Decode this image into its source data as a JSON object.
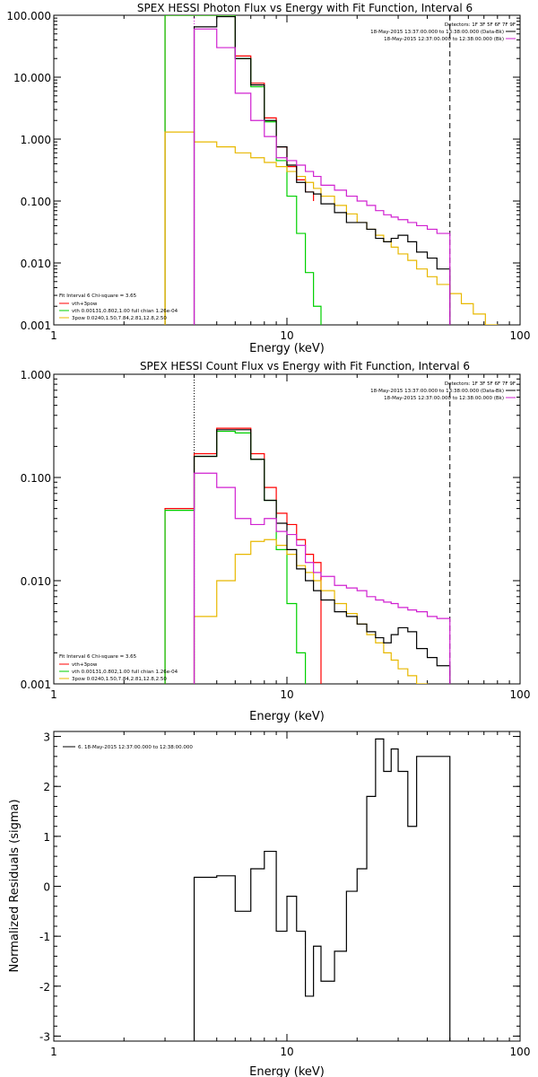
{
  "chart_data": [
    {
      "type": "line",
      "title": "SPEX HESSI Photon Flux vs Energy with Fit Function, Interval 6",
      "xlabel": "Energy (keV)",
      "ylabel": "",
      "x_scale": "log",
      "y_scale": "log",
      "xlim": [
        1,
        100
      ],
      "ylim": [
        0.001,
        100
      ],
      "x_tick_labels": [
        "1",
        "10",
        "100"
      ],
      "y_tick_labels": [
        "0.001",
        "0.010",
        "0.100",
        "1.000",
        "10.000",
        "100.000"
      ],
      "legend_top": [
        "Detectors: 1F 3F 5F 6F 7F 9F",
        "18-May-2015 13:37:00.000 to 13:38:00.000 (Data-Bk)",
        "18-May-2015 12:37:00.000 to 12:38:00.000 (Bk)"
      ],
      "legend_bottom": [
        "Fit Interval 6   Chi-square = 3.65",
        "vth+3pow",
        "vth 0.00131,0.802,1.00  full chian 1.26e-04",
        "3pow 0.0240,1.50,7.84,2.81,12.8,2.50"
      ],
      "series": [
        {
          "name": "vth+3pow",
          "color": "#ff0000",
          "edges": [
            3.0,
            4.0,
            5.0,
            6.0,
            7.0,
            8.0,
            9.0,
            10.0,
            11.0,
            12.0,
            13.0
          ],
          "values": [
            100,
            100,
            100,
            22,
            8,
            2.2,
            0.75,
            0.36,
            0.22,
            0.14,
            0.1
          ]
        },
        {
          "name": "vth",
          "color": "#00d000",
          "edges": [
            3.0,
            4.0,
            5.0,
            6.0,
            7.0,
            8.0,
            9.0,
            10.0,
            11.0,
            12.0,
            13.0,
            14.0
          ],
          "values": [
            100,
            100,
            100,
            20,
            7,
            1.9,
            0.45,
            0.12,
            0.03,
            0.007,
            0.002
          ]
        },
        {
          "name": "3pow",
          "color": "#e8b800",
          "edges": [
            3.0,
            4.0,
            5.0,
            6.0,
            7.0,
            8.0,
            9.0,
            10.0,
            11.0,
            12.0,
            13.0,
            14.0,
            16.0,
            18.0,
            20.0,
            22.0,
            24.0,
            26.0,
            28.0,
            30.0,
            33.0,
            36.0,
            40.0,
            44.0,
            50.0,
            56.0,
            63.0,
            71.0,
            80.0
          ],
          "values": [
            1.3,
            0.9,
            0.75,
            0.6,
            0.5,
            0.42,
            0.36,
            0.3,
            0.25,
            0.2,
            0.16,
            0.12,
            0.085,
            0.062,
            0.045,
            0.035,
            0.028,
            0.022,
            0.018,
            0.014,
            0.011,
            0.008,
            0.006,
            0.0045,
            0.0032,
            0.0022,
            0.0015,
            0.001
          ]
        },
        {
          "name": "18-May-2015 13:37:00.000 to 13:38:00.000 (Data-Bk)",
          "color": "#000000",
          "edges": [
            4.0,
            5.0,
            6.0,
            7.0,
            8.0,
            9.0,
            10.0,
            11.0,
            12.0,
            13.0,
            14.0,
            16.0,
            18.0,
            20.0,
            22.0,
            24.0,
            26.0,
            28.0,
            30.0,
            33.0,
            36.0,
            40.0,
            44.0,
            50.0
          ],
          "values": [
            65,
            95,
            20,
            7.5,
            2.0,
            0.75,
            0.38,
            0.2,
            0.14,
            0.13,
            0.09,
            0.065,
            0.045,
            0.045,
            0.035,
            0.025,
            0.022,
            0.025,
            0.028,
            0.022,
            0.015,
            0.012,
            0.008
          ]
        },
        {
          "name": "18-May-2015 12:37:00.000 to 12:38:00.000 (Bk)",
          "color": "#d020d0",
          "edges": [
            4.0,
            5.0,
            6.0,
            7.0,
            8.0,
            9.0,
            10.0,
            11.0,
            12.0,
            13.0,
            14.0,
            16.0,
            18.0,
            20.0,
            22.0,
            24.0,
            26.0,
            28.0,
            30.0,
            33.0,
            36.0,
            40.0,
            44.0,
            50.0
          ],
          "values": [
            60,
            30,
            5.5,
            2.0,
            1.1,
            0.5,
            0.45,
            0.38,
            0.3,
            0.25,
            0.18,
            0.15,
            0.12,
            0.1,
            0.085,
            0.07,
            0.06,
            0.055,
            0.05,
            0.045,
            0.04,
            0.035,
            0.03
          ]
        }
      ],
      "vlines": [
        {
          "x": 4.0,
          "style": "dotted",
          "color": "#d020d0"
        },
        {
          "x": 50.0,
          "style": "dashed",
          "color": "#000000"
        }
      ]
    },
    {
      "type": "line",
      "title": "SPEX HESSI Count Flux vs Energy with Fit Function, Interval 6",
      "xlabel": "Energy (keV)",
      "ylabel": "",
      "x_scale": "log",
      "y_scale": "log",
      "xlim": [
        1,
        100
      ],
      "ylim": [
        0.001,
        1
      ],
      "x_tick_labels": [
        "1",
        "10",
        "100"
      ],
      "y_tick_labels": [
        "0.001",
        "0.010",
        "0.100",
        "1.000"
      ],
      "legend_top": [
        "Detectors: 1F 3F 5F 6F 7F 9F",
        "18-May-2015 13:37:00.000 to 13:38:00.000 (Data-Bk)",
        "18-May-2015 12:37:00.000 to 12:38:00.000 (Bk)"
      ],
      "legend_bottom": [
        "Fit Interval 6   Chi-square = 3.65",
        "vth+3pow",
        "vth 0.00131,0.802,1.00  full chian 1.26e-04",
        "3pow 0.0240,1.50,7.84,2.81,12.8,2.50"
      ],
      "series": [
        {
          "name": "vth+3pow",
          "color": "#ff0000",
          "edges": [
            3.0,
            4.0,
            5.0,
            6.0,
            7.0,
            8.0,
            9.0,
            10.0,
            11.0,
            12.0,
            13.0,
            14.0
          ],
          "values": [
            0.05,
            0.17,
            0.3,
            0.3,
            0.17,
            0.08,
            0.045,
            0.035,
            0.025,
            0.018,
            0.015
          ]
        },
        {
          "name": "vth",
          "color": "#00d000",
          "edges": [
            3.0,
            4.0,
            5.0,
            6.0,
            7.0,
            8.0,
            9.0,
            10.0,
            11.0,
            12.0
          ],
          "values": [
            0.048,
            0.16,
            0.28,
            0.27,
            0.15,
            0.06,
            0.02,
            0.006,
            0.002
          ]
        },
        {
          "name": "3pow",
          "color": "#e8b800",
          "edges": [
            4.0,
            5.0,
            6.0,
            7.0,
            8.0,
            9.0,
            10.0,
            11.0,
            12.0,
            13.0,
            14.0,
            16.0,
            18.0,
            20.0,
            22.0,
            24.0,
            26.0,
            28.0,
            30.0,
            33.0,
            36.0,
            40.0
          ],
          "values": [
            0.0045,
            0.01,
            0.018,
            0.024,
            0.025,
            0.022,
            0.018,
            0.014,
            0.012,
            0.01,
            0.008,
            0.006,
            0.0048,
            0.0038,
            0.003,
            0.0025,
            0.002,
            0.0017,
            0.0014,
            0.0012,
            0.001
          ]
        },
        {
          "name": "18-May-2015 13:37:00.000 to 13:38:00.000 (Data-Bk)",
          "color": "#000000",
          "edges": [
            4.0,
            5.0,
            6.0,
            7.0,
            8.0,
            9.0,
            10.0,
            11.0,
            12.0,
            13.0,
            14.0,
            16.0,
            18.0,
            20.0,
            22.0,
            24.0,
            26.0,
            28.0,
            30.0,
            33.0,
            36.0,
            40.0,
            44.0,
            50.0
          ],
          "values": [
            0.16,
            0.29,
            0.29,
            0.15,
            0.06,
            0.036,
            0.02,
            0.013,
            0.01,
            0.008,
            0.0065,
            0.005,
            0.0045,
            0.0038,
            0.0032,
            0.0028,
            0.0025,
            0.003,
            0.0035,
            0.0032,
            0.0022,
            0.0018,
            0.0015
          ]
        },
        {
          "name": "18-May-2015 12:37:00.000 to 12:38:00.000 (Bk)",
          "color": "#d020d0",
          "edges": [
            4.0,
            5.0,
            6.0,
            7.0,
            8.0,
            9.0,
            10.0,
            11.0,
            12.0,
            13.0,
            14.0,
            16.0,
            18.0,
            20.0,
            22.0,
            24.0,
            26.0,
            28.0,
            30.0,
            33.0,
            36.0,
            40.0,
            44.0,
            50.0
          ],
          "values": [
            0.11,
            0.08,
            0.04,
            0.035,
            0.04,
            0.03,
            0.028,
            0.022,
            0.015,
            0.012,
            0.011,
            0.009,
            0.0085,
            0.008,
            0.007,
            0.0065,
            0.0062,
            0.006,
            0.0055,
            0.0052,
            0.005,
            0.0045,
            0.0043
          ]
        }
      ],
      "vlines": [
        {
          "x": 4.0,
          "style": "dotted",
          "color": "#000000"
        },
        {
          "x": 50.0,
          "style": "dashed",
          "color": "#000000"
        }
      ]
    },
    {
      "type": "line",
      "title": "",
      "xlabel": "Energy (keV)",
      "ylabel": "Normalized Residuals (sigma)",
      "x_scale": "log",
      "y_scale": "linear",
      "xlim": [
        1,
        100
      ],
      "ylim": [
        -3.1,
        3.1
      ],
      "x_tick_labels": [
        "1",
        "10",
        "100"
      ],
      "y_tick_labels": [
        "-3",
        "-2",
        "-1",
        "0",
        "1",
        "2",
        "3"
      ],
      "legend": "6. 18-May-2015 12:37:00.000 to 12:38:00.000",
      "series": [
        {
          "name": "6. 18-May-2015 12:37:00.000 to 12:38:00.000",
          "color": "#000000",
          "edges": [
            4.0,
            5.0,
            6.0,
            7.0,
            8.0,
            9.0,
            10.0,
            11.0,
            12.0,
            13.0,
            14.0,
            16.0,
            18.0,
            20.0,
            22.0,
            24.0,
            26.0,
            28.0,
            30.0,
            33.0,
            36.0,
            40.0,
            44.0,
            50.0
          ],
          "values": [
            0.18,
            0.21,
            -0.5,
            0.35,
            0.7,
            -0.9,
            -0.2,
            -0.9,
            -2.2,
            -1.2,
            -1.9,
            -1.3,
            -0.1,
            0.35,
            1.8,
            2.95,
            2.3,
            2.75,
            2.3,
            1.2,
            2.6,
            2.6,
            2.6
          ]
        }
      ],
      "vlines": []
    }
  ]
}
